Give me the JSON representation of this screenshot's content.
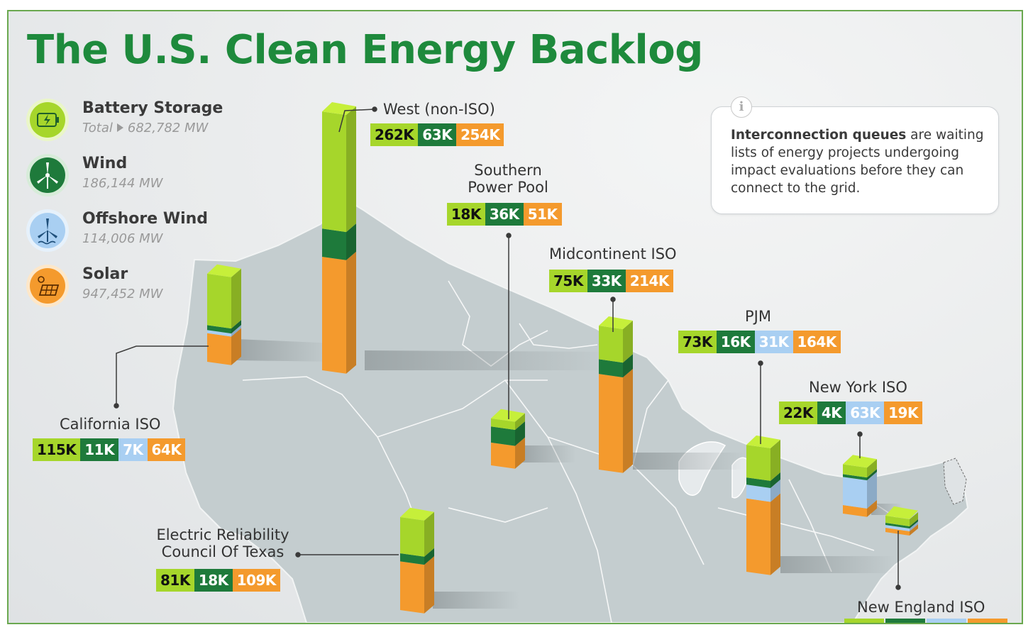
{
  "title": "The U.S. Clean Energy Backlog",
  "legend": {
    "battery": {
      "name": "Battery Storage",
      "total_label": "Total",
      "total": "682,782 MW",
      "icon": "battery-icon",
      "color": "#a6d62b"
    },
    "wind": {
      "name": "Wind",
      "total": "186,144 MW",
      "icon": "wind-turbine-icon",
      "color": "#1e7a3b"
    },
    "offshore": {
      "name": "Offshore Wind",
      "total": "114,006 MW",
      "icon": "offshore-wind-icon",
      "color": "#a9cff2"
    },
    "solar": {
      "name": "Solar",
      "total": "947,452 MW",
      "icon": "solar-panel-icon",
      "color": "#f49a2d"
    }
  },
  "info": {
    "icon": "info-icon",
    "bold": "Interconnection queues",
    "text": " are waiting lists of energy projects undergoing impact evaluations before they can connect to the grid."
  },
  "regions": {
    "west": {
      "name": "West (non-ISO)",
      "battery": "262K",
      "wind": "63K",
      "solar": "254K"
    },
    "spp": {
      "name_line1": "Southern",
      "name_line2": "Power Pool",
      "battery": "18K",
      "wind": "36K",
      "solar": "51K"
    },
    "miso": {
      "name": "Midcontinent ISO",
      "battery": "75K",
      "wind": "33K",
      "solar": "214K"
    },
    "pjm": {
      "name": "PJM",
      "battery": "73K",
      "wind": "16K",
      "offshore": "31K",
      "solar": "164K"
    },
    "nyiso": {
      "name": "New York ISO",
      "battery": "22K",
      "wind": "4K",
      "offshore": "63K",
      "solar": "19K"
    },
    "caiso": {
      "name": "California ISO",
      "battery": "115K",
      "wind": "11K",
      "offshore": "7K",
      "solar": "64K"
    },
    "ercot": {
      "name_line1": "Electric Reliability",
      "name_line2": "Council Of Texas",
      "battery": "81K",
      "wind": "18K",
      "solar": "109K"
    },
    "isone": {
      "name": "New England ISO"
    }
  },
  "colors": {
    "battery": "#a6d62b",
    "wind": "#1e7a3b",
    "offshore": "#a9cff2",
    "solar": "#f49a2d",
    "land": "#c4cdcf",
    "title": "#1e8a3c"
  }
}
